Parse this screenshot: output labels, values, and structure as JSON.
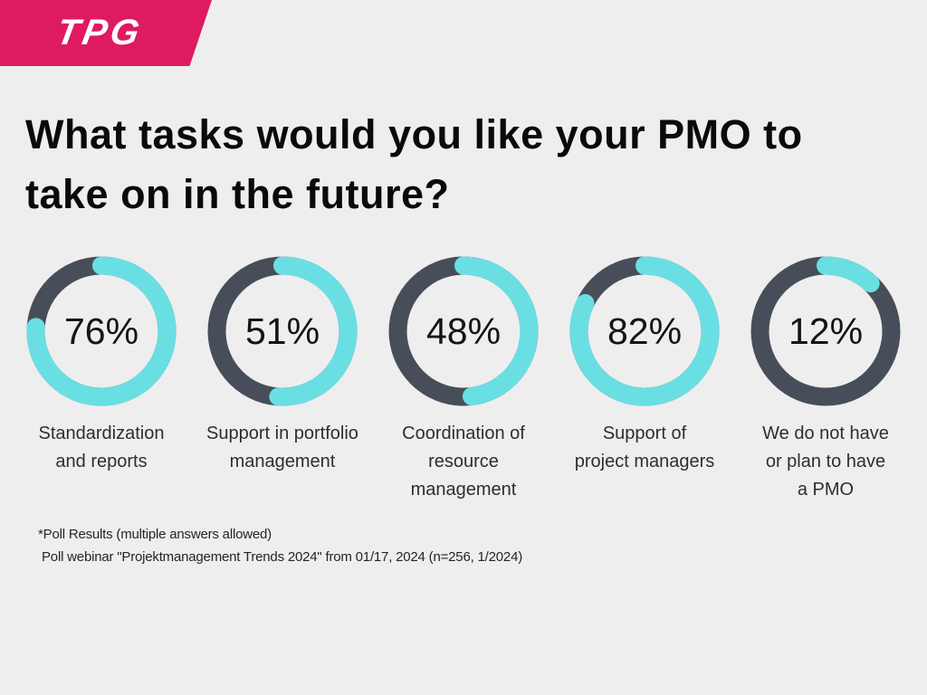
{
  "page": {
    "background": "#eeeeee"
  },
  "logo": {
    "text": "TPG",
    "background": "#de1b60",
    "text_color": "#ffffff"
  },
  "title": {
    "line1": "What tasks would you like your PMO to",
    "line2": "take on in the future?"
  },
  "chart_data": {
    "type": "pie",
    "variant": "donut-progress-rings",
    "title": "What tasks would you like your PMO to take on in the future?",
    "unit": "%",
    "categories": [
      "Standardization and reports",
      "Support in portfolio management",
      "Coordination of resource management",
      "Support of project managers",
      "We do not have or plan to have a PMO"
    ],
    "values": [
      76,
      51,
      48,
      82,
      12
    ],
    "legend": "none",
    "colors": {
      "value_arc": "#69dfe4",
      "remainder_arc": "#474e59"
    }
  },
  "donuts": [
    {
      "value_label": "76%",
      "percent": 76,
      "caption_lines": [
        "Standardization",
        "and reports"
      ]
    },
    {
      "value_label": "51%",
      "percent": 51,
      "caption_lines": [
        "Support in portfolio",
        "management"
      ]
    },
    {
      "value_label": "48%",
      "percent": 48,
      "caption_lines": [
        "Coordination of",
        "resource",
        "management"
      ]
    },
    {
      "value_label": "82%",
      "percent": 82,
      "caption_lines": [
        "Support of",
        "project managers"
      ]
    },
    {
      "value_label": "12%",
      "percent": 12,
      "caption_lines": [
        "We do not have",
        "or plan to have",
        "a PMO"
      ]
    }
  ],
  "footnote": {
    "line1": "*Poll Results (multiple answers allowed)",
    "line2": "Poll webinar \"Projektmanagement Trends 2024\" from 01/17, 2024 (n=256, 1/2024)"
  }
}
